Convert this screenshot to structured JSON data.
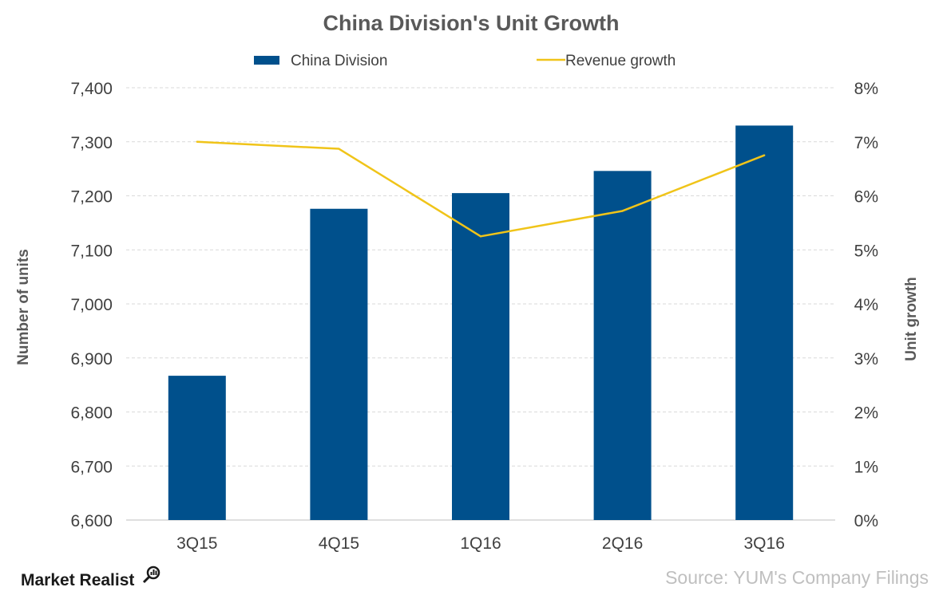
{
  "chart_data": {
    "type": "bar",
    "title": "China Division's Unit Growth",
    "categories": [
      "3Q15",
      "4Q15",
      "1Q16",
      "2Q16",
      "3Q16"
    ],
    "series": [
      {
        "name": "China Division",
        "kind": "bar",
        "axis": "left",
        "color": "#00508c",
        "values": [
          6867,
          7176,
          7205,
          7246,
          7330
        ]
      },
      {
        "name": "Revenue growth",
        "kind": "line",
        "axis": "right",
        "color": "#f0c419",
        "values": [
          7.0,
          6.87,
          5.25,
          5.72,
          6.75
        ]
      }
    ],
    "ylabel": "Number of units",
    "y2label": "Unit growth",
    "ylim": [
      6600,
      7400
    ],
    "y2lim": [
      0,
      8
    ],
    "yticks": [
      "6,600",
      "6,700",
      "6,800",
      "6,900",
      "7,000",
      "7,100",
      "7,200",
      "7,300",
      "7,400"
    ],
    "y2ticks": [
      "0%",
      "1%",
      "2%",
      "3%",
      "4%",
      "5%",
      "6%",
      "7%",
      "8%"
    ],
    "grid": true,
    "legend": "top-center"
  },
  "footer": {
    "brand": "Market Realist",
    "source": "Source: YUM's Company Filings"
  }
}
